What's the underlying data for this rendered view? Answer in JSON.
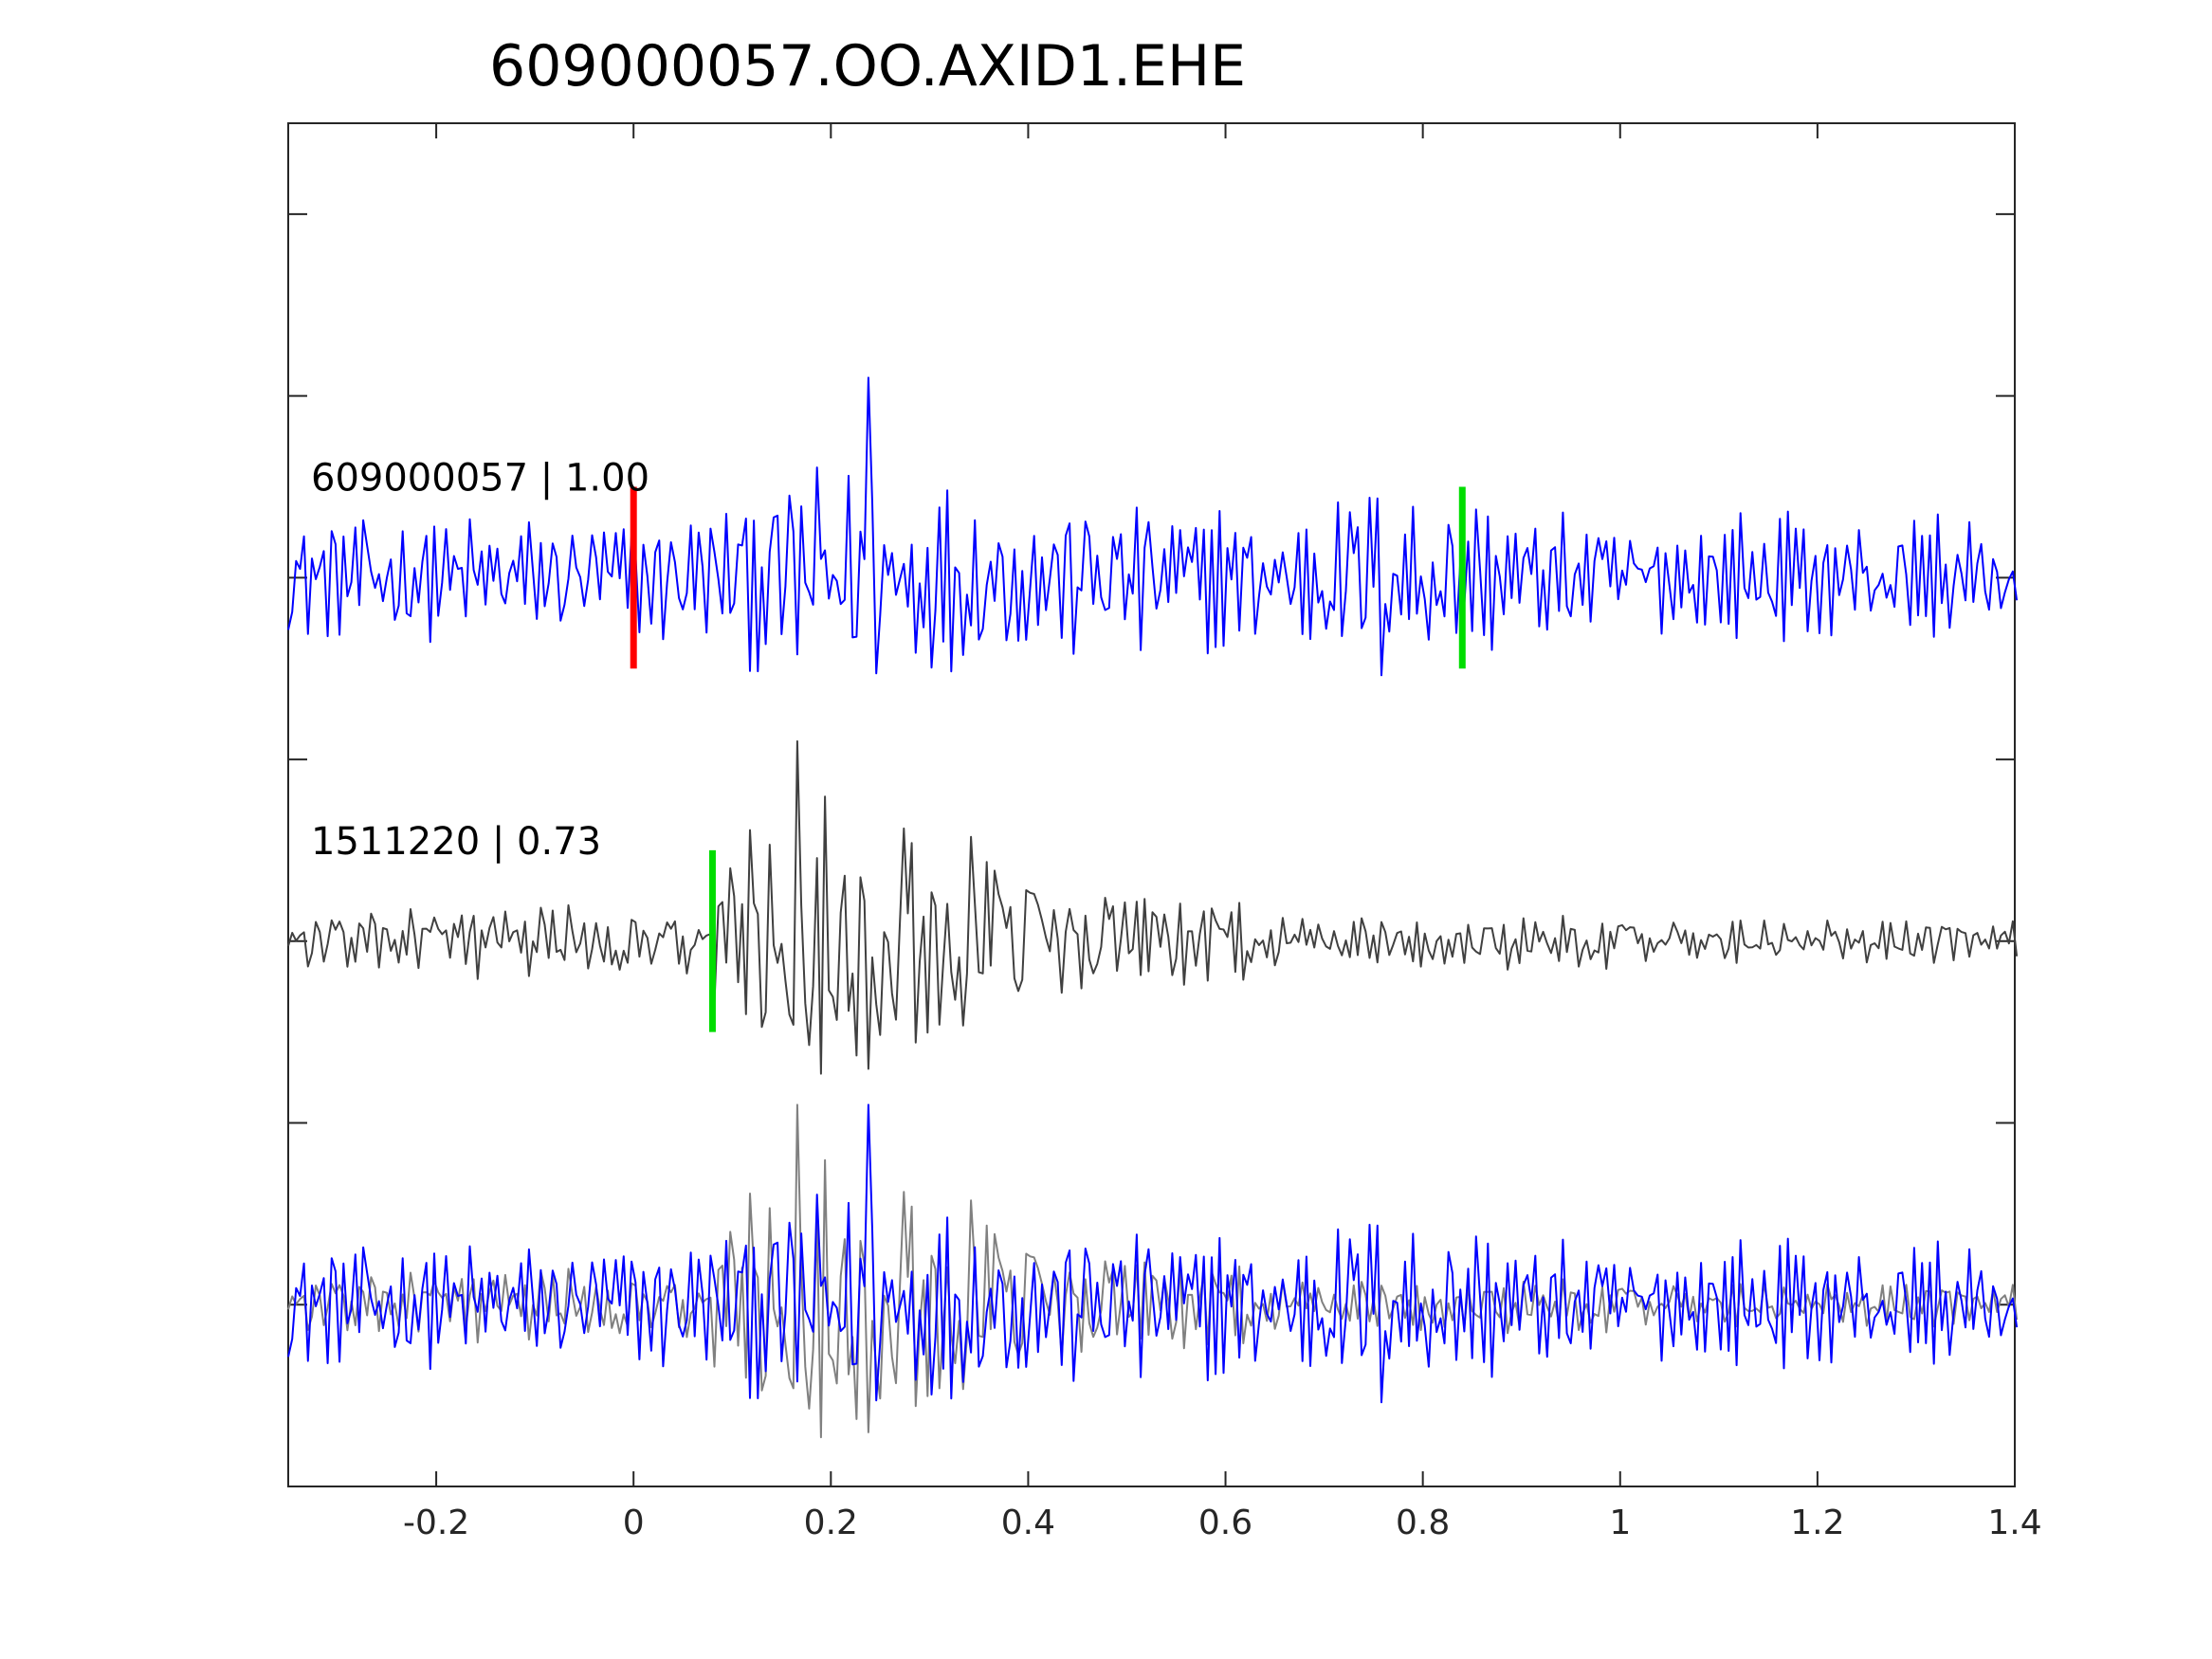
{
  "chart_data": {
    "type": "line",
    "title": "609000057.OO.AXID1.EHE",
    "xlabel": "",
    "ylabel": "",
    "xlim": [
      -0.35,
      1.4
    ],
    "ylim": [
      -0.5,
      3.25
    ],
    "x_ticks": [
      -0.2,
      0,
      0.2,
      0.4,
      0.6,
      0.8,
      1,
      1.2,
      1.4
    ],
    "x_tick_labels": [
      "-0.2",
      "0",
      "0.2",
      "0.4",
      "0.6",
      "0.8",
      "1",
      "1.2",
      "1.4"
    ],
    "y_ticks": [
      0,
      0.5,
      1,
      1.5,
      2,
      2.5,
      3
    ],
    "y_tick_labels": [],
    "grid": false,
    "legend": "none",
    "colors": {
      "template_trace": "#0000ff",
      "detection_trace": "#404040",
      "overlay_detection": "#808080",
      "p_pick": "#ff0000",
      "s_pick": "#00dd00",
      "axes": "#262626"
    },
    "series": [
      {
        "label": "609000057 | 1.00",
        "role": "template",
        "color": "#0000ff",
        "baseline": 2,
        "sample_rate": 250,
        "t_start": -0.35,
        "t_end": 1.4,
        "envelope": [
          [
            -0.35,
            0.17
          ],
          [
            -0.2,
            0.16
          ],
          [
            0.0,
            0.18
          ],
          [
            0.1,
            0.2
          ],
          [
            0.2,
            0.35
          ],
          [
            0.3,
            0.25
          ],
          [
            0.4,
            0.22
          ],
          [
            0.5,
            0.22
          ],
          [
            0.6,
            0.18
          ],
          [
            0.7,
            0.2
          ],
          [
            0.75,
            0.28
          ],
          [
            0.8,
            0.25
          ],
          [
            0.85,
            0.2
          ],
          [
            1.0,
            0.15
          ],
          [
            1.2,
            0.15
          ],
          [
            1.4,
            0.15
          ]
        ],
        "peak": {
          "x": 0.24,
          "y": 2.55
        }
      },
      {
        "label": "1511220 | 0.73",
        "role": "detection",
        "color": "#404040",
        "baseline": 1,
        "sample_rate": 250,
        "t_start": -0.35,
        "t_end": 1.4,
        "envelope": [
          [
            -0.35,
            0.08
          ],
          [
            -0.1,
            0.1
          ],
          [
            0.07,
            0.1
          ],
          [
            0.09,
            0.25
          ],
          [
            0.15,
            0.4
          ],
          [
            0.2,
            0.45
          ],
          [
            0.3,
            0.35
          ],
          [
            0.35,
            0.28
          ],
          [
            0.45,
            0.15
          ],
          [
            0.55,
            0.12
          ],
          [
            0.7,
            0.06
          ],
          [
            0.8,
            0.08
          ],
          [
            1.0,
            0.07
          ],
          [
            1.2,
            0.06
          ],
          [
            1.4,
            0.06
          ]
        ],
        "peak": {
          "x": 0.165,
          "y": 1.55
        }
      }
    ],
    "overlay": {
      "baseline": 0,
      "description_series": [
        "609000057 | 1.00",
        "1511220 | 0.73"
      ]
    },
    "picks": [
      {
        "trace": "609000057 | 1.00",
        "phase": "P",
        "x": 0.0,
        "color": "#ff0000"
      },
      {
        "trace": "609000057 | 1.00",
        "phase": "S",
        "x": 0.84,
        "color": "#00dd00"
      },
      {
        "trace": "1511220 | 0.73",
        "phase": "S",
        "x": 0.08,
        "color": "#00dd00"
      }
    ]
  }
}
